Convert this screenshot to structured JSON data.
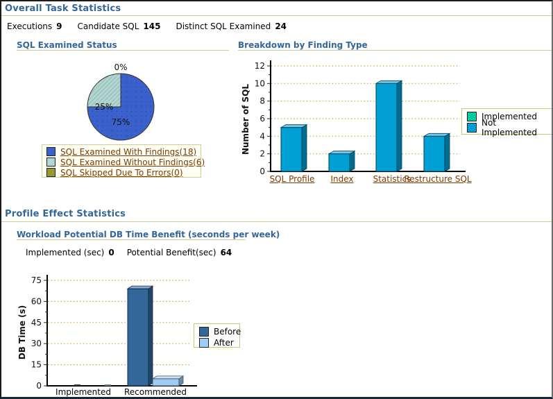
{
  "colors": {
    "heading_blue": "#336699",
    "rule_tan": "#cccc99",
    "link_brown": "#7a3b00",
    "grid_dot": "#ccaa44",
    "legend_border": "#c8c86a"
  },
  "overall": {
    "title": "Overall Task Statistics",
    "stats": [
      {
        "label": "Executions",
        "value": "9"
      },
      {
        "label": "Candidate SQL",
        "value": "145"
      },
      {
        "label": "Distinct SQL Examined",
        "value": "24"
      }
    ]
  },
  "profile_effect": {
    "title": "Profile Effect Statistics",
    "stats": [
      {
        "label": "Implemented (sec)",
        "value": "0"
      },
      {
        "label": "Potential Benefit(sec)",
        "value": "64"
      }
    ]
  },
  "chart_data": [
    {
      "id": "sql-examined-pie",
      "type": "pie",
      "title": "SQL Examined Status",
      "slices": [
        {
          "label": "SQL Examined With Findings(18)",
          "value": 75,
          "pct_label": "75%",
          "color": "#3b62cc"
        },
        {
          "label": "SQL Examined Without Findings(6)",
          "value": 25,
          "pct_label": "25%",
          "color": "#b2d6d2"
        },
        {
          "label": "SQL Skipped Due To Errors(0)",
          "value": 0,
          "pct_label": "0%",
          "color": "#999933"
        }
      ],
      "legend_position": "below"
    },
    {
      "id": "finding-type-bar",
      "type": "bar",
      "title": "Breakdown by Finding Type",
      "categories": [
        "SQL Profile",
        "Index",
        "Statistics",
        "Restructure SQL"
      ],
      "series": [
        {
          "name": "Implemented",
          "color": "#00cc99",
          "values": [
            0,
            0,
            0,
            0
          ]
        },
        {
          "name": "Not Implemented",
          "color": "#009fd4",
          "values": [
            5,
            2,
            10,
            4
          ]
        }
      ],
      "ylabel": "Number of SQL",
      "ylim": [
        0,
        12
      ],
      "ytick_step": 2,
      "grid": "dotted",
      "legend_position": "right"
    },
    {
      "id": "db-time-benefit-bar",
      "type": "bar",
      "title": "Workload Potential DB Time Benefit (seconds per week)",
      "categories": [
        "Implemented",
        "Recommended"
      ],
      "series": [
        {
          "name": "Before",
          "color": "#336699",
          "values": [
            0,
            69
          ]
        },
        {
          "name": "After",
          "color": "#9fccf2",
          "values": [
            0,
            5
          ]
        }
      ],
      "ylabel": "DB Time (s)",
      "ylim": [
        0,
        75
      ],
      "ytick_step": 15,
      "grid": "dotted",
      "legend_position": "right"
    }
  ]
}
